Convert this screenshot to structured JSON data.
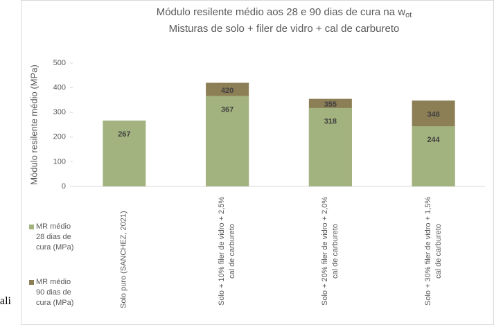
{
  "chart_data": {
    "type": "bar",
    "title": [
      "Módulo resilente médio aos 28 e 90 dias de cura na w",
      "Misturas de solo + filer de vidro + cal de carbureto"
    ],
    "title_subscript": "ot",
    "ylabel": "Módulo resilente médio (MPa)",
    "categories": [
      "Solo puro (SANCHEZ, 2021)",
      "Solo + 10% filer de vidro + 2,5% cal de carbureto",
      "Solo + 20% filer de vidro + 2,0% cal de carbureto",
      "Solo + 30% filer de vidro + 1,5% cal de carbureto"
    ],
    "series": [
      {
        "name": "MR médio 28 dias de cura (MPa)",
        "color": "#a3b37f",
        "values": [
          267,
          367,
          318,
          244
        ]
      },
      {
        "name": "MR médio 90 dias de cura (MPa)",
        "color": "#8c7e55",
        "values": [
          null,
          420,
          355,
          348
        ]
      }
    ],
    "ylim": [
      0,
      500
    ],
    "yticks": [
      0,
      100,
      200,
      300,
      400,
      500
    ],
    "grid": false,
    "fragment": "ali"
  }
}
